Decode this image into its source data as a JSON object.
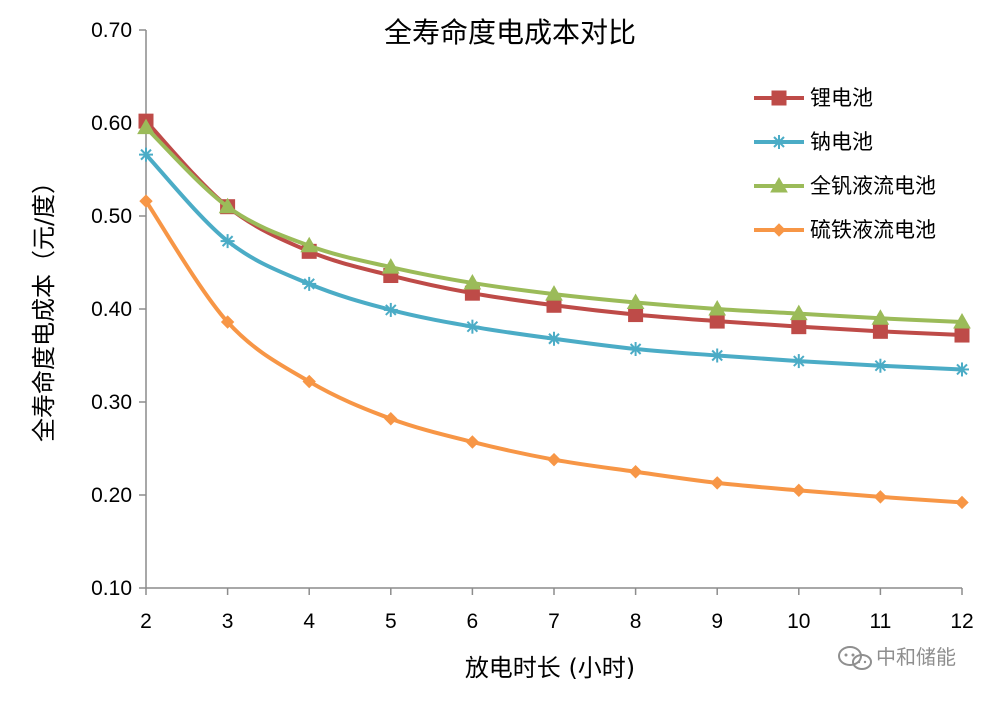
{
  "watermark": {
    "text": "中和储能",
    "icon": "wechat-icon"
  },
  "chart_data": {
    "type": "line",
    "title": "全寿命度电成本对比",
    "xlabel": "放电时长 (小时)",
    "ylabel": "全寿命度电成本（元/度）",
    "x": [
      2,
      3,
      4,
      5,
      6,
      7,
      8,
      9,
      10,
      11,
      12
    ],
    "xlim": [
      2,
      12
    ],
    "ylim": [
      0.1,
      0.7
    ],
    "yticks": [
      "0.10",
      "0.20",
      "0.30",
      "0.40",
      "0.50",
      "0.60",
      "0.70"
    ],
    "xticks": [
      "2",
      "3",
      "4",
      "5",
      "6",
      "7",
      "8",
      "9",
      "10",
      "11",
      "12"
    ],
    "grid": false,
    "legend_position": "top-right",
    "series": [
      {
        "name": "锂电池",
        "color": "#be4b48",
        "marker": "square",
        "values": [
          0.602,
          0.51,
          0.462,
          0.436,
          0.417,
          0.404,
          0.394,
          0.387,
          0.381,
          0.376,
          0.372
        ]
      },
      {
        "name": "钠电池",
        "color": "#4bacc6",
        "marker": "asterisk",
        "values": [
          0.566,
          0.473,
          0.427,
          0.399,
          0.381,
          0.368,
          0.357,
          0.35,
          0.344,
          0.339,
          0.335
        ]
      },
      {
        "name": "全钒液流电池",
        "color": "#9bbb59",
        "marker": "triangle",
        "values": [
          0.595,
          0.51,
          0.468,
          0.445,
          0.428,
          0.416,
          0.407,
          0.4,
          0.395,
          0.39,
          0.386
        ]
      },
      {
        "name": "硫铁液流电池",
        "color": "#f79646",
        "marker": "diamond",
        "values": [
          0.516,
          0.386,
          0.322,
          0.282,
          0.257,
          0.238,
          0.225,
          0.213,
          0.205,
          0.198,
          0.192
        ]
      }
    ]
  }
}
